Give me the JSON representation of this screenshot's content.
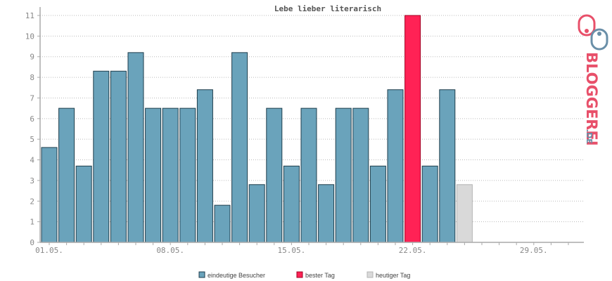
{
  "chart_data": {
    "type": "bar",
    "title": "Lebe lieber literarisch",
    "ylim": [
      0,
      11
    ],
    "yticks": [
      0,
      1,
      2,
      3,
      4,
      5,
      6,
      7,
      8,
      9,
      10,
      11
    ],
    "grid": true,
    "x_tick_labels": [
      "01.05.",
      "08.05.",
      "15.05.",
      "22.05.",
      "29.05."
    ],
    "values": [
      4.6,
      6.5,
      3.7,
      8.3,
      8.3,
      9.2,
      6.5,
      6.5,
      6.5,
      7.4,
      1.8,
      9.2,
      2.8,
      6.5,
      3.7,
      6.5,
      2.8,
      6.5,
      6.5,
      3.7,
      7.4,
      11,
      3.7,
      7.4,
      2.8,
      0,
      0,
      0,
      0,
      0,
      0
    ],
    "best_day_index": 21,
    "today_index": 24,
    "colors": {
      "visitors": "#6aa3bb",
      "best": "#ff2255",
      "today": "#d9d9d9",
      "grid": "#bbbbbb",
      "axis": "#aaaaaa"
    },
    "legend": [
      {
        "key": "visitors",
        "label": "eindeutige Besucher"
      },
      {
        "key": "best",
        "label": "bester Tag"
      },
      {
        "key": "today",
        "label": "heutiger Tag"
      }
    ],
    "legend_position": "bottom-center"
  },
  "logo": {
    "text": "BLOGGEREI",
    "suffix": ".DE"
  }
}
